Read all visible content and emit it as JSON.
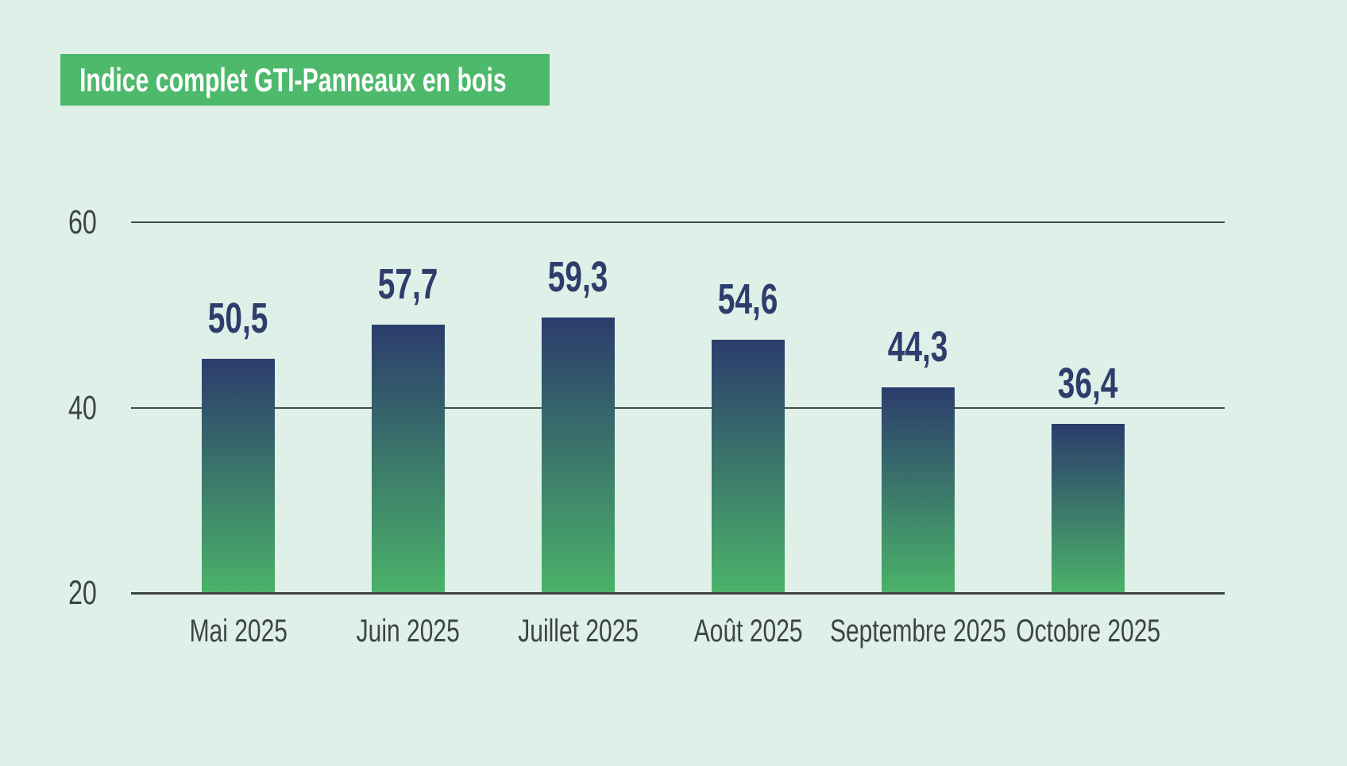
{
  "chart": {
    "title": "Indice complet GTI-Panneaux en bois"
  },
  "chart_data": {
    "type": "bar",
    "title": "Indice complet GTI-Panneaux en bois",
    "categories": [
      "Mai 2025",
      "Juin 2025",
      "Juillet 2025",
      "Août 2025",
      "Septembre 2025",
      "Octobre 2025"
    ],
    "values": [
      50.5,
      57.7,
      59.3,
      54.6,
      44.3,
      36.4
    ],
    "value_labels": [
      "50,5",
      "57,7",
      "59,3",
      "54,6",
      "44,3",
      "36,4"
    ],
    "yticks": [
      20,
      40,
      60
    ],
    "ylim": [
      20,
      60
    ],
    "xlabel": "",
    "ylabel": "",
    "grid": "horizontal",
    "legend": "none"
  },
  "colors": {
    "background": "#dff0e8",
    "banner_green": "#4db96b",
    "title_text": "#ffffff",
    "bar_top_navy": "#2b3c6c",
    "bar_bottom_green": "#4bb269",
    "value_label_navy": "#2d3d6c",
    "grid_line": "#46494b",
    "baseline": "#3f4446",
    "tick_label": "#3e4345"
  }
}
